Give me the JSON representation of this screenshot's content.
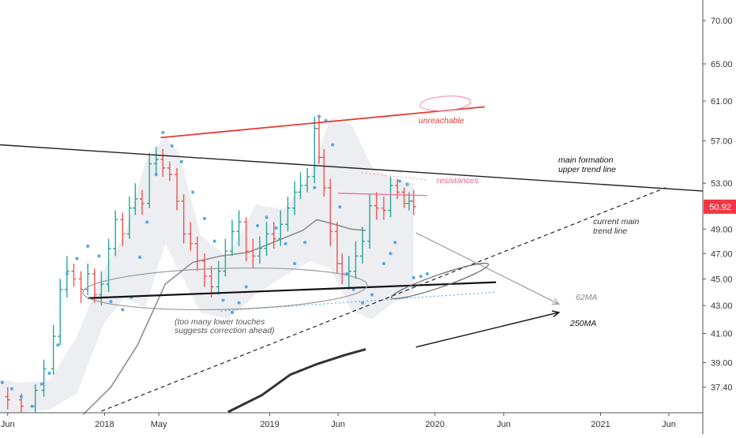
{
  "chart_data": {
    "type": "candlestick",
    "title": "",
    "xlabel": "",
    "ylabel": "",
    "y_axis": {
      "position": "right",
      "ticks": [
        "70.00",
        "65.00",
        "61.00",
        "57.00",
        "53.00",
        "49.00",
        "47.00",
        "45.00",
        "43.00",
        "41.00",
        "39.00",
        "37.40"
      ],
      "tick_values": [
        70,
        65,
        61,
        57,
        53,
        49,
        47,
        45,
        43,
        41,
        39,
        37.4
      ],
      "scale": "log",
      "range": [
        35.8,
        72.5
      ]
    },
    "x_axis": {
      "ticks": [
        "Jun",
        "2018",
        "May",
        "2019",
        "Jun",
        "2020",
        "Jun",
        "2021",
        "Jun"
      ],
      "tick_dates": [
        "2017-06-01",
        "2018-01-01",
        "2018-05-01",
        "2019-01-01",
        "2019-06-01",
        "2020-01-01",
        "2020-06-01",
        "2021-01-01",
        "2021-06-01"
      ],
      "range": [
        "2017-05-15",
        "2021-08-15"
      ]
    },
    "last_price": {
      "label": "50.92",
      "value": 50.92,
      "color": "#f23645"
    },
    "colors": {
      "up": "#26a69a",
      "down": "#ef5350",
      "sar": "#5aa9e6",
      "bands": "#e6e8ec",
      "ma62": "#8f8f8f",
      "ma250": "#333333",
      "annotation_red": "#e53935",
      "annotation_pink": "#f06292"
    },
    "series": [
      {
        "name": "62MA",
        "kind": "moving-average",
        "dates": [
          "2017-11-15",
          "2018-01-15",
          "2018-03-15",
          "2018-05-15",
          "2018-07-15",
          "2018-09-15",
          "2018-11-15",
          "2019-01-15",
          "2019-03-15",
          "2019-04-15",
          "2019-05-15",
          "2019-07-01",
          "2019-08-01"
        ],
        "values": [
          35.7,
          37.4,
          40.2,
          44.6,
          46.3,
          46.8,
          47.1,
          48.0,
          48.9,
          49.8,
          49.5,
          49.0,
          48.9
        ]
      },
      {
        "name": "250MA",
        "kind": "moving-average",
        "dates": [
          "2018-10-01",
          "2018-12-15",
          "2019-02-15",
          "2019-04-15",
          "2019-06-15",
          "2019-08-01"
        ],
        "values": [
          35.85,
          36.9,
          38.2,
          38.9,
          39.5,
          39.9
        ]
      },
      {
        "name": "Parabolic SAR",
        "kind": "dots",
        "points": [
          [
            "2017-05-20",
            37.7
          ],
          [
            "2017-06-10",
            37.3
          ],
          [
            "2017-07-01",
            36.8
          ],
          [
            "2017-07-25",
            36.2
          ],
          [
            "2017-08-15",
            37.6
          ],
          [
            "2017-09-01",
            38.3
          ],
          [
            "2017-09-20",
            40.2
          ],
          [
            "2017-10-10",
            45.4
          ],
          [
            "2017-11-01",
            46.6
          ],
          [
            "2017-11-25",
            47.6
          ],
          [
            "2017-12-20",
            46.8
          ],
          [
            "2018-01-15",
            43.3
          ],
          [
            "2018-02-10",
            42.7
          ],
          [
            "2018-03-01",
            43.6
          ],
          [
            "2018-03-20",
            46.7
          ],
          [
            "2018-04-05",
            49.6
          ],
          [
            "2018-04-25",
            53.8
          ],
          [
            "2018-05-10",
            57.8
          ],
          [
            "2018-05-30",
            56.5
          ],
          [
            "2018-06-20",
            55.0
          ],
          [
            "2018-07-15",
            52.2
          ],
          [
            "2018-08-10",
            49.9
          ],
          [
            "2018-09-01",
            48.0
          ],
          [
            "2018-09-20",
            43.4
          ],
          [
            "2018-10-10",
            42.5
          ],
          [
            "2018-10-25",
            43.2
          ],
          [
            "2018-11-10",
            44.4
          ],
          [
            "2018-12-05",
            49.3
          ],
          [
            "2018-12-25",
            50.0
          ],
          [
            "2019-01-15",
            49.1
          ],
          [
            "2019-02-05",
            47.8
          ],
          [
            "2019-02-25",
            46.2
          ],
          [
            "2019-03-20",
            47.9
          ],
          [
            "2019-04-10",
            52.6
          ],
          [
            "2019-04-20",
            59.4
          ],
          [
            "2019-05-05",
            59.0
          ],
          [
            "2019-05-20",
            56.6
          ],
          [
            "2019-06-05",
            50.9
          ],
          [
            "2019-06-20",
            45.4
          ],
          [
            "2019-07-05",
            44.2
          ],
          [
            "2019-07-25",
            43.2
          ],
          [
            "2019-08-15",
            43.8
          ],
          [
            "2019-09-10",
            46.2
          ],
          [
            "2019-09-25",
            47.0
          ],
          [
            "2019-10-05",
            47.9
          ],
          [
            "2019-10-15",
            53.2
          ],
          [
            "2019-11-01",
            52.9
          ],
          [
            "2019-11-15",
            45.1
          ],
          [
            "2019-12-01",
            45.2
          ],
          [
            "2019-12-15",
            45.4
          ]
        ]
      },
      {
        "name": "Bollinger Bands",
        "kind": "band",
        "dates": [
          "2017-05-15",
          "2017-07-01",
          "2017-09-01",
          "2017-11-01",
          "2018-01-01",
          "2018-02-15",
          "2018-04-01",
          "2018-05-15",
          "2018-06-15",
          "2018-08-01",
          "2018-10-01",
          "2018-12-01",
          "2019-02-01",
          "2019-04-01",
          "2019-05-15",
          "2019-07-01",
          "2019-08-15",
          "2019-10-01",
          "2019-11-15"
        ],
        "upper": [
          37.9,
          37.7,
          37.8,
          40.8,
          45.8,
          48.6,
          54.9,
          57.4,
          55.8,
          48.5,
          46.7,
          51.1,
          50.7,
          53.8,
          59.3,
          58.6,
          54.5,
          53.4,
          53.0
        ],
        "lower": [
          35.8,
          35.8,
          36.0,
          37.0,
          41.8,
          43.6,
          42.8,
          47.8,
          45.6,
          42.5,
          42.0,
          43.8,
          45.2,
          46.4,
          45.8,
          42.6,
          42.0,
          43.2,
          44.0
        ]
      },
      {
        "name": "Price",
        "kind": "ohlc-bars",
        "dates": [
          "2017-06-01",
          "2017-07-01",
          "2017-08-01",
          "2017-08-20",
          "2017-09-10",
          "2017-09-25",
          "2017-10-10",
          "2017-10-25",
          "2017-11-10",
          "2017-11-25",
          "2017-12-10",
          "2017-12-25",
          "2018-01-10",
          "2018-01-25",
          "2018-02-10",
          "2018-02-25",
          "2018-03-10",
          "2018-03-25",
          "2018-04-10",
          "2018-04-25",
          "2018-05-10",
          "2018-05-25",
          "2018-06-10",
          "2018-06-25",
          "2018-07-10",
          "2018-07-25",
          "2018-08-10",
          "2018-08-25",
          "2018-09-10",
          "2018-09-25",
          "2018-10-10",
          "2018-10-25",
          "2018-11-10",
          "2018-11-25",
          "2018-12-10",
          "2018-12-25",
          "2019-01-10",
          "2019-01-25",
          "2019-02-10",
          "2019-02-25",
          "2019-03-10",
          "2019-03-25",
          "2019-04-10",
          "2019-04-20",
          "2019-05-01",
          "2019-05-15",
          "2019-05-30",
          "2019-06-10",
          "2019-06-25",
          "2019-07-10",
          "2019-07-25",
          "2019-08-10",
          "2019-08-25",
          "2019-09-10",
          "2019-09-25",
          "2019-10-10",
          "2019-10-25",
          "2019-11-05",
          "2019-11-15"
        ],
        "open": [
          36.8,
          36.6,
          36.2,
          37.2,
          38.6,
          40.8,
          44.2,
          45.6,
          45.0,
          44.2,
          45.4,
          43.8,
          44.6,
          47.4,
          49.8,
          48.6,
          50.8,
          51.6,
          51.2,
          54.8,
          55.2,
          54.4,
          53.8,
          51.4,
          48.6,
          47.8,
          46.4,
          45.2,
          44.4,
          45.6,
          47.2,
          48.8,
          49.6,
          47.2,
          46.8,
          47.4,
          48.6,
          48.2,
          49.4,
          50.8,
          52.2,
          52.8,
          53.6,
          58.2,
          55.4,
          52.6,
          48.8,
          46.2,
          45.4,
          45.6,
          46.8,
          48.0,
          51.0,
          50.8,
          50.6,
          52.8,
          52.2,
          51.2,
          51.4
        ],
        "close": [
          36.6,
          36.2,
          37.2,
          38.6,
          40.8,
          44.2,
          45.6,
          45.0,
          44.2,
          45.4,
          43.8,
          44.6,
          47.4,
          49.8,
          48.6,
          50.8,
          51.6,
          51.2,
          54.8,
          55.2,
          54.4,
          53.8,
          51.4,
          48.6,
          47.8,
          46.4,
          45.2,
          44.4,
          45.6,
          47.2,
          48.8,
          49.6,
          47.2,
          46.8,
          47.4,
          48.6,
          48.2,
          49.4,
          50.8,
          52.2,
          52.8,
          53.6,
          58.2,
          55.4,
          52.6,
          48.8,
          46.2,
          45.4,
          45.6,
          46.8,
          48.0,
          51.0,
          50.8,
          50.6,
          52.8,
          52.2,
          51.2,
          51.4,
          50.92
        ],
        "high": [
          37.4,
          37.0,
          37.6,
          39.2,
          41.6,
          45.0,
          46.8,
          46.2,
          45.6,
          46.2,
          45.8,
          45.6,
          48.2,
          50.6,
          50.4,
          51.8,
          53.0,
          52.4,
          55.8,
          56.4,
          56.2,
          55.0,
          54.4,
          52.0,
          49.6,
          48.4,
          47.0,
          46.0,
          46.4,
          48.2,
          49.8,
          50.6,
          50.0,
          48.2,
          48.4,
          49.6,
          49.6,
          50.6,
          51.8,
          53.2,
          54.0,
          54.4,
          59.4,
          59.6,
          56.2,
          53.4,
          49.6,
          47.0,
          46.8,
          48.0,
          49.2,
          52.0,
          52.2,
          51.8,
          53.6,
          53.4,
          52.6,
          52.2,
          52.4
        ],
        "low": [
          36.0,
          35.8,
          35.8,
          36.8,
          38.2,
          40.2,
          43.6,
          44.4,
          43.2,
          43.8,
          43.2,
          43.0,
          44.0,
          46.8,
          47.6,
          48.2,
          50.2,
          50.2,
          50.8,
          53.8,
          53.6,
          53.2,
          50.6,
          47.8,
          47.2,
          45.6,
          44.4,
          43.6,
          43.8,
          45.2,
          46.8,
          47.6,
          46.4,
          45.8,
          46.2,
          46.8,
          47.4,
          47.6,
          48.8,
          50.2,
          51.6,
          52.2,
          53.0,
          54.8,
          51.8,
          47.6,
          45.4,
          44.6,
          44.2,
          45.0,
          46.2,
          47.4,
          49.8,
          49.8,
          50.0,
          51.6,
          50.8,
          50.6,
          50.2
        ]
      }
    ],
    "drawings": [
      {
        "name": "main-formation-upper-trend-line",
        "from": [
          "2017-05-15",
          56.6
        ],
        "to": [
          "2021-08-15",
          52.3
        ]
      },
      {
        "name": "current-main-trend-line",
        "from": [
          "2017-12-25",
          35.9
        ],
        "to": [
          "2021-05-25",
          52.6
        ],
        "dashed": true
      },
      {
        "name": "lower-support-line",
        "from": [
          "2017-11-25",
          43.55
        ],
        "to": [
          "2020-05-15",
          44.75
        ]
      },
      {
        "name": "unreachable-red-line",
        "from": [
          "2018-05-05",
          57.3
        ],
        "to": [
          "2020-04-20",
          60.4
        ]
      },
      {
        "name": "resistance-line",
        "from": [
          "2019-06-01",
          52.1
        ],
        "to": [
          "2019-12-15",
          51.9
        ]
      },
      {
        "name": "blue-dotted-line",
        "from": [
          "2018-09-15",
          42.6
        ],
        "to": [
          "2020-05-15",
          44.0
        ]
      },
      {
        "name": "62MA-projection",
        "from": [
          "2019-11-20",
          48.7
        ],
        "to": [
          "2020-10-01",
          43.1
        ]
      },
      {
        "name": "250MA-projection",
        "from": [
          "2019-11-20",
          40.05
        ],
        "to": [
          "2020-10-01",
          42.5
        ]
      }
    ],
    "annotations": {
      "unreachable": "unreachable",
      "resistances": "resistances",
      "main_formation_1": "main formation",
      "main_formation_2": "upper trend line",
      "current_main_1": "current main",
      "current_main_2": "trend line",
      "ma62": "62MA",
      "ma250": "250MA",
      "lower_touches_1": "(too many lower touches",
      "lower_touches_2": "suggests correction ahead)"
    }
  }
}
